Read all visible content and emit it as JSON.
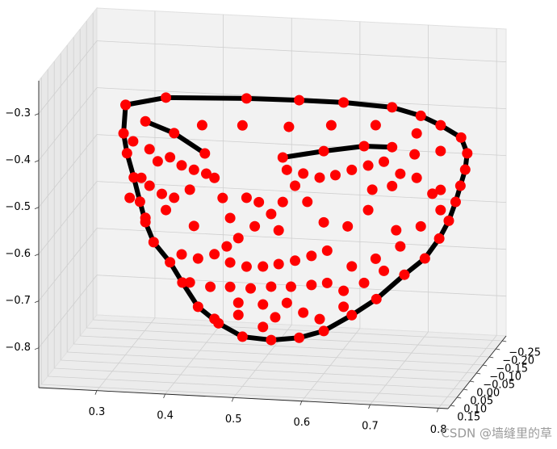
{
  "chart_data": {
    "type": "scatter3d",
    "xlim": [
      0.215,
      0.814
    ],
    "ylim": [
      -0.28,
      0.17
    ],
    "zlim": [
      -0.885,
      -0.23
    ],
    "xticks": [
      0.3,
      0.4,
      0.5,
      0.6,
      0.7,
      0.8
    ],
    "yticks": [
      {
        "value": -0.25,
        "label": "−0.25"
      },
      {
        "value": -0.2,
        "label": "−0.20"
      },
      {
        "value": -0.15,
        "label": "−0.15"
      },
      {
        "value": -0.1,
        "label": "−0.10"
      },
      {
        "value": -0.05,
        "label": "−0.05"
      },
      {
        "value": 0,
        "label": "0.00"
      },
      0.05,
      {
        "value": 0.1,
        "label": "0.10"
      },
      0.15
    ],
    "zticks": [
      {
        "value": -0.8,
        "label": "−0.8"
      },
      {
        "value": -0.7,
        "label": "−0.7"
      },
      {
        "value": -0.6,
        "label": "−0.6"
      },
      {
        "value": -0.5,
        "label": "−0.5"
      },
      {
        "value": -0.4,
        "label": "−0.4"
      },
      {
        "value": -0.3,
        "label": "−0.3"
      }
    ],
    "grid": true,
    "lines": [
      {
        "color": "#000000",
        "marker_color": "#ff0000",
        "x": [
          0.31,
          0.369,
          0.487,
          0.564,
          0.629,
          0.7,
          0.742,
          0.771,
          0.801,
          0.81,
          0.807,
          0.8,
          0.793,
          0.783,
          0.769,
          0.748,
          0.718,
          0.677,
          0.641,
          0.6,
          0.564,
          0.523,
          0.481,
          0.446,
          0.416,
          0.393,
          0.375,
          0.351,
          0.339,
          0.331,
          0.322,
          0.312,
          0.307,
          0.31
        ],
        "y": [
          0,
          0,
          0,
          0,
          0,
          0,
          0,
          0,
          0,
          0,
          0,
          0,
          0,
          0,
          0,
          0,
          0,
          0,
          0,
          0,
          0,
          0,
          0,
          0,
          0,
          0,
          0,
          0,
          0,
          0,
          0,
          0,
          0,
          0
        ],
        "z": [
          -0.333,
          -0.313,
          -0.306,
          -0.304,
          -0.304,
          -0.309,
          -0.324,
          -0.342,
          -0.366,
          -0.399,
          -0.434,
          -0.469,
          -0.504,
          -0.545,
          -0.584,
          -0.628,
          -0.665,
          -0.72,
          -0.757,
          -0.794,
          -0.811,
          -0.819,
          -0.815,
          -0.789,
          -0.756,
          -0.706,
          -0.664,
          -0.623,
          -0.581,
          -0.538,
          -0.487,
          -0.436,
          -0.394,
          -0.333
        ]
      },
      {
        "color": "#000000",
        "marker_color": "#ff0000",
        "x": [
          0.339,
          0.381,
          0.426
        ],
        "y": [
          0,
          0,
          0
        ],
        "z": [
          -0.366,
          -0.388,
          -0.428
        ]
      },
      {
        "color": "#000000",
        "marker_color": "#ff0000",
        "x": [
          0.54,
          0.6,
          0.659,
          0.7
        ],
        "y": [
          0,
          0,
          0,
          0
        ],
        "z": [
          -0.428,
          -0.41,
          -0.395,
          -0.394
        ]
      }
    ],
    "series": [
      {
        "color": "#ff0000",
        "x": [
          0.422,
          0.481,
          0.549,
          0.611,
          0.676,
          0.736,
          0.771,
          0.733,
          0.321,
          0.345,
          0.357,
          0.375,
          0.392,
          0.41,
          0.428,
          0.333,
          0.345,
          0.363,
          0.381,
          0.404,
          0.546,
          0.57,
          0.594,
          0.617,
          0.641,
          0.665,
          0.688,
          0.712,
          0.736,
          0.759,
          0.7,
          0.671,
          0.44,
          0.452,
          0.463,
          0.475,
          0.458,
          0.487,
          0.505,
          0.523,
          0.54,
          0.558,
          0.576,
          0.534,
          0.499,
          0.316,
          0.339,
          0.369,
          0.41,
          0.6,
          0.635,
          0.665,
          0.706,
          0.742,
          0.771,
          0.771,
          0.392,
          0.416,
          0.44,
          0.463,
          0.487,
          0.511,
          0.534,
          0.558,
          0.582,
          0.605,
          0.404,
          0.434,
          0.463,
          0.493,
          0.523,
          0.552,
          0.582,
          0.605,
          0.475,
          0.511,
          0.546,
          0.475,
          0.529,
          0.57,
          0.641,
          0.676,
          0.712,
          0.629,
          0.659,
          0.688,
          0.44,
          0.511,
          0.594,
          0.629
        ],
        "y": [
          0,
          0,
          0,
          0,
          0,
          0,
          0,
          0,
          0,
          0,
          0,
          0,
          0,
          0,
          0,
          0,
          0,
          0,
          0,
          0,
          0,
          0,
          0,
          0,
          0,
          0,
          0,
          0,
          0,
          0,
          0,
          0,
          0,
          0,
          0,
          0,
          0,
          0,
          0,
          0,
          0,
          0,
          0,
          0,
          0,
          0,
          0,
          0,
          0,
          0,
          0,
          0,
          0,
          0,
          0,
          0,
          0,
          0,
          0,
          0,
          0,
          0,
          0,
          0,
          0,
          0,
          0,
          0,
          0,
          0,
          0,
          0,
          0,
          0,
          0,
          0,
          0,
          0,
          0,
          0,
          0,
          0,
          0,
          0,
          0,
          0,
          0,
          0,
          0,
          0
        ],
        "z": [
          -0.368,
          -0.364,
          -0.362,
          -0.354,
          -0.349,
          -0.362,
          -0.397,
          -0.407,
          -0.41,
          -0.425,
          -0.45,
          -0.44,
          -0.456,
          -0.464,
          -0.471,
          -0.487,
          -0.503,
          -0.519,
          -0.526,
          -0.507,
          -0.454,
          -0.46,
          -0.467,
          -0.46,
          -0.447,
          -0.436,
          -0.426,
          -0.45,
          -0.457,
          -0.489,
          -0.477,
          -0.487,
          -0.479,
          -0.521,
          -0.563,
          -0.605,
          -0.624,
          -0.518,
          -0.526,
          -0.55,
          -0.523,
          -0.487,
          -0.52,
          -0.584,
          -0.578,
          -0.531,
          -0.572,
          -0.553,
          -0.584,
          -0.562,
          -0.568,
          -0.531,
          -0.571,
          -0.56,
          -0.523,
          -0.48,
          -0.646,
          -0.653,
          -0.642,
          -0.658,
          -0.665,
          -0.663,
          -0.656,
          -0.647,
          -0.635,
          -0.622,
          -0.705,
          -0.712,
          -0.71,
          -0.711,
          -0.705,
          -0.703,
          -0.697,
          -0.691,
          -0.743,
          -0.744,
          -0.738,
          -0.769,
          -0.77,
          -0.757,
          -0.653,
          -0.634,
          -0.605,
          -0.706,
          -0.687,
          -0.659,
          -0.78,
          -0.792,
          -0.769,
          -0.74
        ]
      }
    ],
    "watermark": "CSDN @墙缝里的草"
  }
}
